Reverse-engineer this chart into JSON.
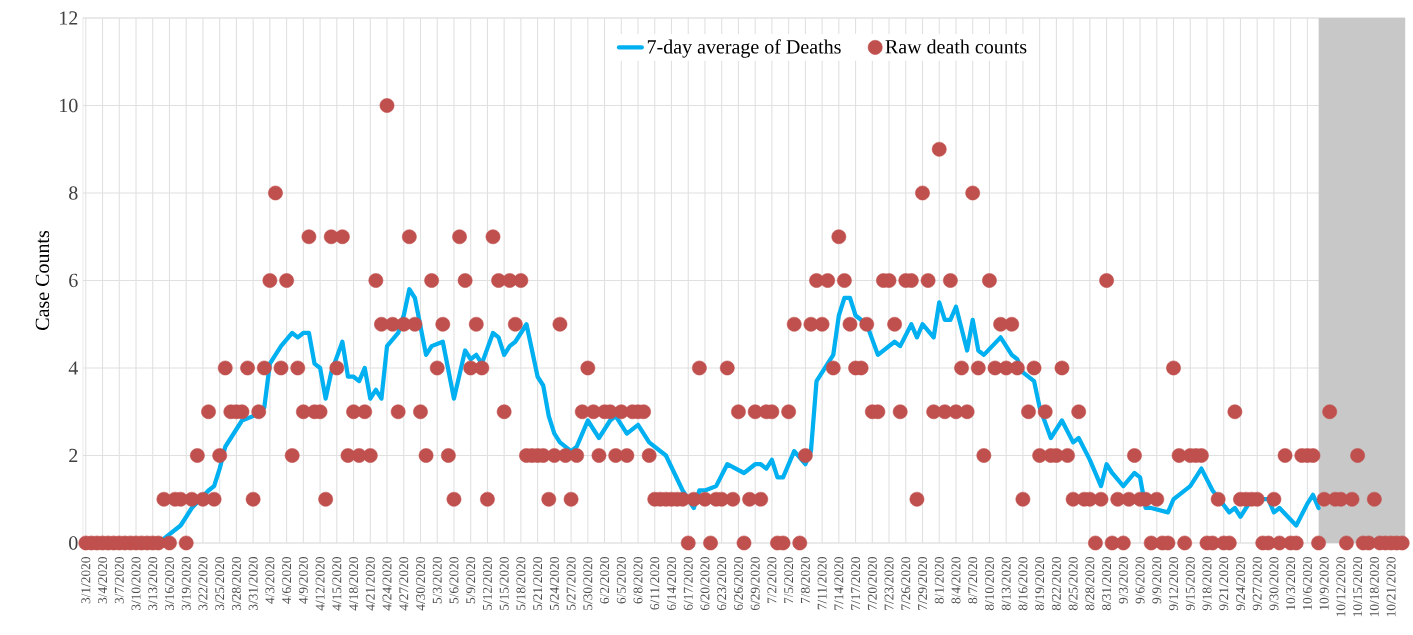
{
  "chart_data": {
    "type": "scatter",
    "ylabel": "Case Counts",
    "xlim": [
      "2020-02-29T12:00",
      "2020-10-23T12:00"
    ],
    "ylim": [
      0,
      12
    ],
    "yticks": [
      0,
      2,
      4,
      6,
      8,
      10,
      12
    ],
    "xticks": [
      {
        "value": "2020-03-01",
        "label": "3/1/2020"
      },
      {
        "value": "2020-03-04",
        "label": "3/4/2020"
      },
      {
        "value": "2020-03-07",
        "label": "3/7/2020"
      },
      {
        "value": "2020-03-10",
        "label": "3/10/2020"
      },
      {
        "value": "2020-03-13",
        "label": "3/13/2020"
      },
      {
        "value": "2020-03-16",
        "label": "3/16/2020"
      },
      {
        "value": "2020-03-19",
        "label": "3/19/2020"
      },
      {
        "value": "2020-03-22",
        "label": "3/22/2020"
      },
      {
        "value": "2020-03-25",
        "label": "3/25/2020"
      },
      {
        "value": "2020-03-28",
        "label": "3/28/2020"
      },
      {
        "value": "2020-03-31",
        "label": "3/31/2020"
      },
      {
        "value": "2020-04-03",
        "label": "4/3/2020"
      },
      {
        "value": "2020-04-06",
        "label": "4/6/2020"
      },
      {
        "value": "2020-04-09",
        "label": "4/9/2020"
      },
      {
        "value": "2020-04-12",
        "label": "4/12/2020"
      },
      {
        "value": "2020-04-15",
        "label": "4/15/2020"
      },
      {
        "value": "2020-04-18",
        "label": "4/18/2020"
      },
      {
        "value": "2020-04-21",
        "label": "4/21/2020"
      },
      {
        "value": "2020-04-24",
        "label": "4/24/2020"
      },
      {
        "value": "2020-04-27",
        "label": "4/27/2020"
      },
      {
        "value": "2020-04-30",
        "label": "4/30/2020"
      },
      {
        "value": "2020-05-03",
        "label": "5/3/2020"
      },
      {
        "value": "2020-05-06",
        "label": "5/6/2020"
      },
      {
        "value": "2020-05-09",
        "label": "5/9/2020"
      },
      {
        "value": "2020-05-12",
        "label": "5/12/2020"
      },
      {
        "value": "2020-05-15",
        "label": "5/15/2020"
      },
      {
        "value": "2020-05-18",
        "label": "5/18/2020"
      },
      {
        "value": "2020-05-21",
        "label": "5/21/2020"
      },
      {
        "value": "2020-05-24",
        "label": "5/24/2020"
      },
      {
        "value": "2020-05-27",
        "label": "5/27/2020"
      },
      {
        "value": "2020-05-30",
        "label": "5/30/2020"
      },
      {
        "value": "2020-06-02",
        "label": "6/2/2020"
      },
      {
        "value": "2020-06-05",
        "label": "6/5/2020"
      },
      {
        "value": "2020-06-08",
        "label": "6/8/2020"
      },
      {
        "value": "2020-06-11",
        "label": "6/11/2020"
      },
      {
        "value": "2020-06-14",
        "label": "6/14/2020"
      },
      {
        "value": "2020-06-17",
        "label": "6/17/2020"
      },
      {
        "value": "2020-06-20",
        "label": "6/20/2020"
      },
      {
        "value": "2020-06-23",
        "label": "6/23/2020"
      },
      {
        "value": "2020-06-26",
        "label": "6/26/2020"
      },
      {
        "value": "2020-06-29",
        "label": "6/29/2020"
      },
      {
        "value": "2020-07-02",
        "label": "7/2/2020"
      },
      {
        "value": "2020-07-05",
        "label": "7/5/2020"
      },
      {
        "value": "2020-07-08",
        "label": "7/8/2020"
      },
      {
        "value": "2020-07-11",
        "label": "7/11/2020"
      },
      {
        "value": "2020-07-14",
        "label": "7/14/2020"
      },
      {
        "value": "2020-07-17",
        "label": "7/17/2020"
      },
      {
        "value": "2020-07-20",
        "label": "7/20/2020"
      },
      {
        "value": "2020-07-23",
        "label": "7/23/2020"
      },
      {
        "value": "2020-07-26",
        "label": "7/26/2020"
      },
      {
        "value": "2020-07-29",
        "label": "7/29/2020"
      },
      {
        "value": "2020-08-01",
        "label": "8/1/2020"
      },
      {
        "value": "2020-08-04",
        "label": "8/4/2020"
      },
      {
        "value": "2020-08-07",
        "label": "8/7/2020"
      },
      {
        "value": "2020-08-10",
        "label": "8/10/2020"
      },
      {
        "value": "2020-08-13",
        "label": "8/13/2020"
      },
      {
        "value": "2020-08-16",
        "label": "8/16/2020"
      },
      {
        "value": "2020-08-19",
        "label": "8/19/2020"
      },
      {
        "value": "2020-08-22",
        "label": "8/22/2020"
      },
      {
        "value": "2020-08-25",
        "label": "8/25/2020"
      },
      {
        "value": "2020-08-28",
        "label": "8/28/2020"
      },
      {
        "value": "2020-08-31",
        "label": "8/31/2020"
      },
      {
        "value": "2020-09-03",
        "label": "9/3/2020"
      },
      {
        "value": "2020-09-06",
        "label": "9/6/2020"
      },
      {
        "value": "2020-09-09",
        "label": "9/9/2020"
      },
      {
        "value": "2020-09-12",
        "label": "9/12/2020"
      },
      {
        "value": "2020-09-15",
        "label": "9/15/2020"
      },
      {
        "value": "2020-09-18",
        "label": "9/18/2020"
      },
      {
        "value": "2020-09-21",
        "label": "9/21/2020"
      },
      {
        "value": "2020-09-24",
        "label": "9/24/2020"
      },
      {
        "value": "2020-09-27",
        "label": "9/27/2020"
      },
      {
        "value": "2020-09-30",
        "label": "9/30/2020"
      },
      {
        "value": "2020-10-03",
        "label": "10/3/2020"
      },
      {
        "value": "2020-10-06",
        "label": "10/6/2020"
      },
      {
        "value": "2020-10-09",
        "label": "10/9/2020"
      },
      {
        "value": "2020-10-12",
        "label": "10/12/2020"
      },
      {
        "value": "2020-10-15",
        "label": "10/15/2020"
      },
      {
        "value": "2020-10-18",
        "label": "10/18/2020"
      },
      {
        "value": "2020-10-21",
        "label": "10/21/2020"
      }
    ],
    "grid": true,
    "legend": "top",
    "bands": [
      {
        "axis": "x",
        "from": "2020-10-08",
        "to": "2020-10-23T12:00",
        "color": "#c8c8c8"
      }
    ],
    "x": [
      "2020-03-01",
      "2020-03-02",
      "2020-03-03",
      "2020-03-04",
      "2020-03-05",
      "2020-03-06",
      "2020-03-07",
      "2020-03-08",
      "2020-03-09",
      "2020-03-10",
      "2020-03-11",
      "2020-03-12",
      "2020-03-13",
      "2020-03-14",
      "2020-03-15",
      "2020-03-16",
      "2020-03-17",
      "2020-03-18",
      "2020-03-19",
      "2020-03-20",
      "2020-03-21",
      "2020-03-22",
      "2020-03-23",
      "2020-03-24",
      "2020-03-25",
      "2020-03-26",
      "2020-03-27",
      "2020-03-28",
      "2020-03-29",
      "2020-03-30",
      "2020-03-31",
      "2020-04-01",
      "2020-04-02",
      "2020-04-03",
      "2020-04-04",
      "2020-04-05",
      "2020-04-06",
      "2020-04-07",
      "2020-04-08",
      "2020-04-09",
      "2020-04-10",
      "2020-04-11",
      "2020-04-12",
      "2020-04-13",
      "2020-04-14",
      "2020-04-15",
      "2020-04-16",
      "2020-04-17",
      "2020-04-18",
      "2020-04-19",
      "2020-04-20",
      "2020-04-21",
      "2020-04-22",
      "2020-04-23",
      "2020-04-24",
      "2020-04-25",
      "2020-04-26",
      "2020-04-27",
      "2020-04-28",
      "2020-04-29",
      "2020-04-30",
      "2020-05-01",
      "2020-05-02",
      "2020-05-03",
      "2020-05-04",
      "2020-05-05",
      "2020-05-06",
      "2020-05-07",
      "2020-05-08",
      "2020-05-09",
      "2020-05-10",
      "2020-05-11",
      "2020-05-12",
      "2020-05-13",
      "2020-05-14",
      "2020-05-15",
      "2020-05-16",
      "2020-05-17",
      "2020-05-18",
      "2020-05-19",
      "2020-05-20",
      "2020-05-21",
      "2020-05-22",
      "2020-05-23",
      "2020-05-24",
      "2020-05-25",
      "2020-05-26",
      "2020-05-27",
      "2020-05-28",
      "2020-05-29",
      "2020-05-30",
      "2020-05-31",
      "2020-06-01",
      "2020-06-02",
      "2020-06-03",
      "2020-06-04",
      "2020-06-05",
      "2020-06-06",
      "2020-06-07",
      "2020-06-08",
      "2020-06-09",
      "2020-06-10",
      "2020-06-11",
      "2020-06-12",
      "2020-06-13",
      "2020-06-14",
      "2020-06-15",
      "2020-06-16",
      "2020-06-17",
      "2020-06-18",
      "2020-06-19",
      "2020-06-20",
      "2020-06-21",
      "2020-06-22",
      "2020-06-23",
      "2020-06-24",
      "2020-06-25",
      "2020-06-26",
      "2020-06-27",
      "2020-06-28",
      "2020-06-29",
      "2020-06-30",
      "2020-07-01",
      "2020-07-02",
      "2020-07-03",
      "2020-07-04",
      "2020-07-05",
      "2020-07-06",
      "2020-07-07",
      "2020-07-08",
      "2020-07-09",
      "2020-07-10",
      "2020-07-11",
      "2020-07-12",
      "2020-07-13",
      "2020-07-14",
      "2020-07-15",
      "2020-07-16",
      "2020-07-17",
      "2020-07-18",
      "2020-07-19",
      "2020-07-20",
      "2020-07-21",
      "2020-07-22",
      "2020-07-23",
      "2020-07-24",
      "2020-07-25",
      "2020-07-26",
      "2020-07-27",
      "2020-07-28",
      "2020-07-29",
      "2020-07-30",
      "2020-07-31",
      "2020-08-01",
      "2020-08-02",
      "2020-08-03",
      "2020-08-04",
      "2020-08-05",
      "2020-08-06",
      "2020-08-07",
      "2020-08-08",
      "2020-08-09",
      "2020-08-10",
      "2020-08-11",
      "2020-08-12",
      "2020-08-13",
      "2020-08-14",
      "2020-08-15",
      "2020-08-16",
      "2020-08-17",
      "2020-08-18",
      "2020-08-19",
      "2020-08-20",
      "2020-08-21",
      "2020-08-22",
      "2020-08-23",
      "2020-08-24",
      "2020-08-25",
      "2020-08-26",
      "2020-08-27",
      "2020-08-28",
      "2020-08-29",
      "2020-08-30",
      "2020-08-31",
      "2020-09-01",
      "2020-09-02",
      "2020-09-03",
      "2020-09-04",
      "2020-09-05",
      "2020-09-06",
      "2020-09-07",
      "2020-09-08",
      "2020-09-09",
      "2020-09-10",
      "2020-09-11",
      "2020-09-12",
      "2020-09-13",
      "2020-09-14",
      "2020-09-15",
      "2020-09-16",
      "2020-09-17",
      "2020-09-18",
      "2020-09-19",
      "2020-09-20",
      "2020-09-21",
      "2020-09-22",
      "2020-09-23",
      "2020-09-24",
      "2020-09-25",
      "2020-09-26",
      "2020-09-27",
      "2020-09-28",
      "2020-09-29",
      "2020-09-30",
      "2020-10-01",
      "2020-10-02",
      "2020-10-03",
      "2020-10-04",
      "2020-10-05",
      "2020-10-06",
      "2020-10-07",
      "2020-10-08",
      "2020-10-09",
      "2020-10-10",
      "2020-10-11",
      "2020-10-12",
      "2020-10-13",
      "2020-10-14",
      "2020-10-15",
      "2020-10-16",
      "2020-10-17",
      "2020-10-18",
      "2020-10-19",
      "2020-10-20",
      "2020-10-21",
      "2020-10-22",
      "2020-10-23"
    ],
    "series": [
      {
        "name": "7-day average of Deaths",
        "type": "line",
        "color": "#00b0f0",
        "line_style": "solid",
        "x": [
          "2020-03-07",
          "2020-03-14",
          "2020-03-15",
          "2020-03-18",
          "2020-03-20",
          "2020-03-23",
          "2020-03-24",
          "2020-03-25",
          "2020-03-26",
          "2020-03-29",
          "2020-03-31",
          "2020-04-02",
          "2020-04-03",
          "2020-04-05",
          "2020-04-07",
          "2020-04-08",
          "2020-04-09",
          "2020-04-10",
          "2020-04-11",
          "2020-04-12",
          "2020-04-13",
          "2020-04-14",
          "2020-04-16",
          "2020-04-17",
          "2020-04-18",
          "2020-04-19",
          "2020-04-20",
          "2020-04-21",
          "2020-04-22",
          "2020-04-23",
          "2020-04-24",
          "2020-04-26",
          "2020-04-27",
          "2020-04-28",
          "2020-04-29",
          "2020-05-01",
          "2020-05-02",
          "2020-05-04",
          "2020-05-06",
          "2020-05-08",
          "2020-05-09",
          "2020-05-10",
          "2020-05-11",
          "2020-05-13",
          "2020-05-14",
          "2020-05-15",
          "2020-05-16",
          "2020-05-17",
          "2020-05-19",
          "2020-05-21",
          "2020-05-22",
          "2020-05-23",
          "2020-05-24",
          "2020-05-25",
          "2020-05-27",
          "2020-05-28",
          "2020-05-29",
          "2020-05-30",
          "2020-06-01",
          "2020-06-03",
          "2020-06-04",
          "2020-06-06",
          "2020-06-08",
          "2020-06-10",
          "2020-06-13",
          "2020-06-16",
          "2020-06-18",
          "2020-06-19",
          "2020-06-20",
          "2020-06-22",
          "2020-06-24",
          "2020-06-27",
          "2020-06-29",
          "2020-06-30",
          "2020-07-01",
          "2020-07-02",
          "2020-07-03",
          "2020-07-04",
          "2020-07-06",
          "2020-07-08",
          "2020-07-09",
          "2020-07-10",
          "2020-07-12",
          "2020-07-13",
          "2020-07-14",
          "2020-07-15",
          "2020-07-16",
          "2020-07-17",
          "2020-07-19",
          "2020-07-21",
          "2020-07-23",
          "2020-07-24",
          "2020-07-25",
          "2020-07-27",
          "2020-07-28",
          "2020-07-29",
          "2020-07-31",
          "2020-08-01",
          "2020-08-02",
          "2020-08-03",
          "2020-08-04",
          "2020-08-06",
          "2020-08-07",
          "2020-08-08",
          "2020-08-09",
          "2020-08-12",
          "2020-08-14",
          "2020-08-15",
          "2020-08-16",
          "2020-08-18",
          "2020-08-19",
          "2020-08-21",
          "2020-08-23",
          "2020-08-25",
          "2020-08-26",
          "2020-08-28",
          "2020-08-30",
          "2020-08-31",
          "2020-09-01",
          "2020-09-03",
          "2020-09-05",
          "2020-09-06",
          "2020-09-07",
          "2020-09-08",
          "2020-09-11",
          "2020-09-12",
          "2020-09-13",
          "2020-09-14",
          "2020-09-15",
          "2020-09-17",
          "2020-09-19",
          "2020-09-22",
          "2020-09-23",
          "2020-09-24",
          "2020-09-26",
          "2020-09-29",
          "2020-09-30",
          "2020-10-01",
          "2020-10-04",
          "2020-10-06",
          "2020-10-07",
          "2020-10-08"
        ],
        "values": [
          0,
          0,
          0.1,
          0.4,
          0.8,
          1.2,
          1.3,
          1.7,
          2.2,
          2.8,
          2.9,
          3.1,
          4.1,
          4.5,
          4.8,
          4.7,
          4.8,
          4.8,
          4.1,
          4.0,
          3.3,
          3.9,
          4.6,
          3.8,
          3.8,
          3.7,
          4.0,
          3.3,
          3.5,
          3.3,
          4.5,
          4.8,
          5.2,
          5.8,
          5.6,
          4.3,
          4.5,
          4.6,
          3.3,
          4.4,
          4.2,
          4.3,
          4.1,
          4.8,
          4.7,
          4.3,
          4.5,
          4.6,
          5.0,
          3.8,
          3.6,
          2.9,
          2.5,
          2.3,
          2.1,
          2.2,
          2.5,
          2.8,
          2.4,
          2.8,
          2.9,
          2.5,
          2.7,
          2.3,
          2.0,
          1.2,
          0.8,
          1.2,
          1.2,
          1.3,
          1.8,
          1.6,
          1.8,
          1.8,
          1.7,
          1.9,
          1.5,
          1.5,
          2.1,
          1.8,
          2.1,
          3.7,
          4.1,
          4.3,
          5.2,
          5.6,
          5.6,
          5.2,
          5.0,
          4.3,
          4.5,
          4.6,
          4.5,
          5.0,
          4.7,
          5.0,
          4.7,
          5.5,
          5.1,
          5.1,
          5.4,
          4.4,
          5.1,
          4.4,
          4.3,
          4.7,
          4.3,
          4.2,
          3.9,
          3.7,
          3.1,
          2.4,
          2.8,
          2.3,
          2.4,
          1.9,
          1.3,
          1.8,
          1.6,
          1.3,
          1.6,
          1.5,
          0.8,
          0.8,
          0.7,
          1.0,
          1.1,
          1.2,
          1.3,
          1.7,
          1.2,
          0.7,
          0.8,
          0.6,
          1.0,
          1.0,
          0.7,
          0.8,
          0.4,
          0.9,
          1.1,
          0.8
        ]
      },
      {
        "name": "Raw death counts",
        "color": "#c0504d",
        "marker": "circle",
        "values": [
          0,
          0,
          0,
          0,
          0,
          0,
          0,
          0,
          0,
          0,
          0,
          0,
          0,
          0,
          1,
          0,
          1,
          1,
          0,
          1,
          2,
          1,
          3,
          1,
          2,
          4,
          3,
          3,
          3,
          4,
          1,
          3,
          4,
          6,
          8,
          4,
          6,
          2,
          4,
          3,
          7,
          3,
          3,
          1,
          7,
          4,
          7,
          2,
          3,
          2,
          3,
          2,
          6,
          5,
          10,
          5,
          3,
          5,
          7,
          5,
          3,
          2,
          6,
          4,
          5,
          2,
          1,
          7,
          6,
          4,
          5,
          4,
          1,
          7,
          6,
          3,
          6,
          5,
          6,
          2,
          2,
          2,
          2,
          1,
          2,
          5,
          2,
          1,
          2,
          3,
          4,
          3,
          2,
          3,
          3,
          2,
          3,
          2,
          3,
          3,
          3,
          2,
          1,
          1,
          1,
          1,
          1,
          1,
          0,
          1,
          4,
          1,
          0,
          1,
          1,
          4,
          1,
          3,
          0,
          1,
          3,
          1,
          3,
          3,
          0,
          0,
          3,
          5,
          0,
          2,
          5,
          6,
          5,
          6,
          4,
          7,
          6,
          5,
          4,
          4,
          5,
          3,
          3,
          6,
          6,
          5,
          3,
          6,
          6,
          1,
          8,
          6,
          3,
          9,
          3,
          6,
          3,
          4,
          3,
          8,
          4,
          2,
          6,
          4,
          5,
          4,
          5,
          4,
          1,
          3,
          4,
          2,
          3,
          2,
          2,
          4,
          2,
          1,
          3,
          1,
          1,
          0,
          1,
          6,
          0,
          1,
          0,
          1,
          2,
          1,
          1,
          0,
          1,
          0,
          0,
          4,
          2,
          0,
          2,
          2,
          2,
          0,
          0,
          1,
          0,
          0,
          3,
          1,
          1,
          1,
          1,
          0,
          0,
          1,
          0,
          2,
          0,
          0,
          2,
          2,
          2,
          0,
          1,
          3,
          1,
          1,
          0,
          1,
          2,
          0,
          0,
          1,
          0,
          0,
          0,
          0,
          0
        ]
      }
    ]
  }
}
